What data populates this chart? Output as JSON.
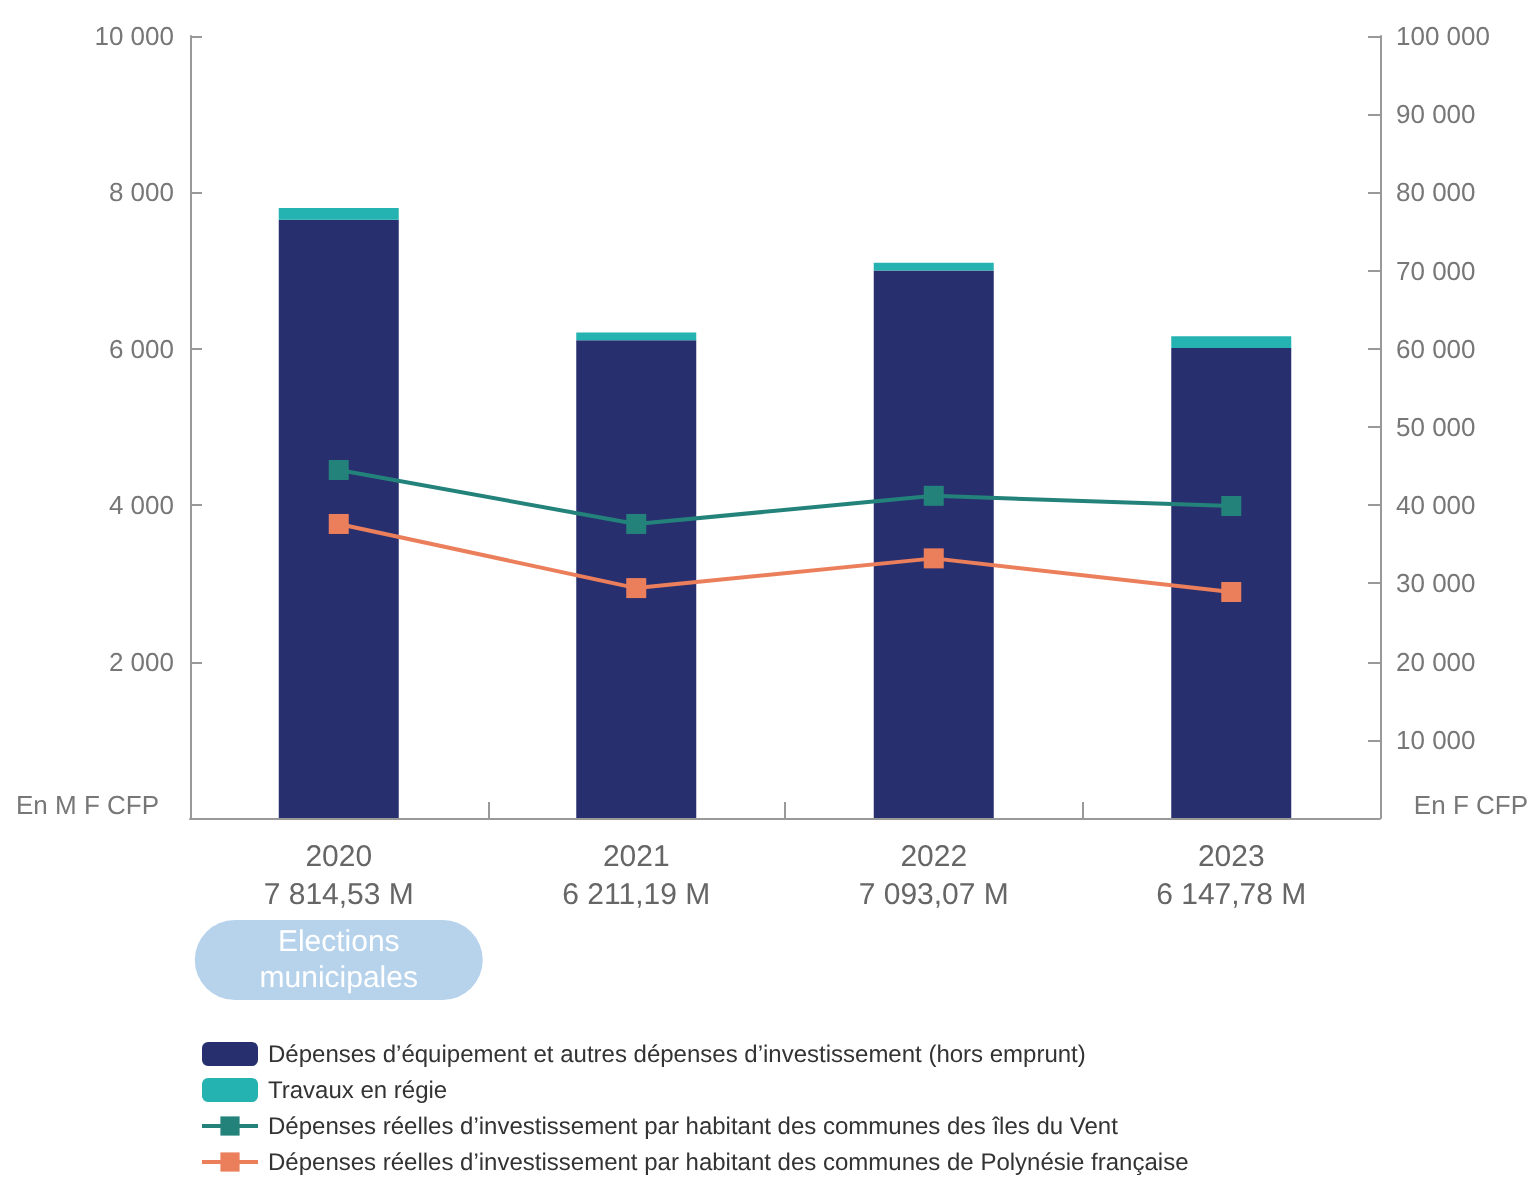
{
  "chart_data": {
    "type": "bar",
    "stacked": true,
    "categories": [
      "2020\n7 814,53 M",
      "2021\n6 211,19 M",
      "2022\n7 093,07 M",
      "2023\n6 147,78 M"
    ],
    "series": [
      {
        "name": "Dépenses d’équipement et autres dépenses d’investissement (hors emprunt)",
        "color": "#282f6f",
        "values": [
          7650,
          6110,
          7000,
          6010
        ]
      },
      {
        "name": "Travaux en régie",
        "color": "#25b3b1",
        "values": [
          150,
          100,
          100,
          150
        ]
      },
      {
        "name": "Dépenses réelles d’investissement par habitant des communes des îles du Vent",
        "type": "line",
        "axis": "y2",
        "color": "#23837a",
        "values": [
          44500,
          37600,
          41200,
          39900
        ]
      },
      {
        "name": "Dépenses réelles d’investissement par habitant des communes de Polynésie française",
        "type": "line",
        "axis": "y2",
        "color": "#ec7f5b",
        "values": [
          37600,
          29400,
          33200,
          28900
        ]
      }
    ],
    "ylabel": "En M F CFP",
    "y2label": "En F CFP",
    "ylim": [
      0,
      10000
    ],
    "yticks": [
      {
        "value": 0,
        "label": null
      },
      {
        "value": 2000,
        "label": "2 000"
      },
      {
        "value": 4000,
        "label": "4 000"
      },
      {
        "value": 6000,
        "label": "6 000"
      },
      {
        "value": 8000,
        "label": "8 000"
      },
      {
        "value": 10000,
        "label": "10 000"
      }
    ],
    "y2lim": [
      0,
      100000
    ],
    "y2ticks": [
      {
        "value": 0,
        "label": null
      },
      {
        "value": 10000,
        "label": "10 000"
      },
      {
        "value": 20000,
        "label": "20 000"
      },
      {
        "value": 30000,
        "label": "30 000"
      },
      {
        "value": 40000,
        "label": "40 000"
      },
      {
        "value": 50000,
        "label": "50 000"
      },
      {
        "value": 60000,
        "label": "60 000"
      },
      {
        "value": 70000,
        "label": "70 000"
      },
      {
        "value": 80000,
        "label": "80 000"
      },
      {
        "value": 90000,
        "label": "90 000"
      },
      {
        "value": 100000,
        "label": "100 000"
      }
    ],
    "annotations": [
      "Elections municipales"
    ],
    "marker": "square",
    "grid": false,
    "legend": "bottom"
  }
}
